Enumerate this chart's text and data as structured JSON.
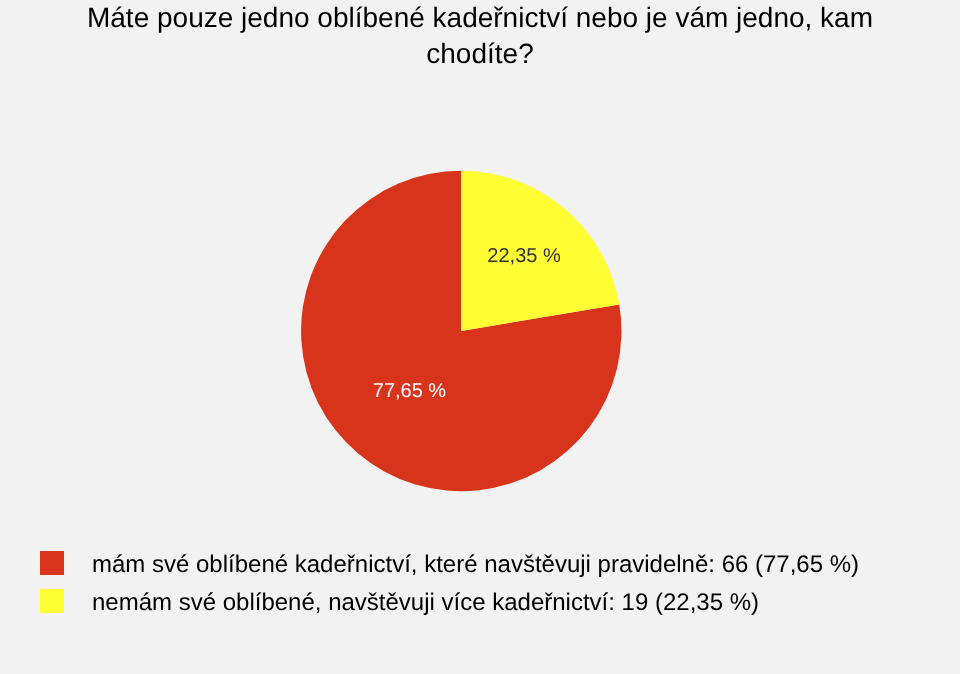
{
  "chart_data": {
    "type": "pie",
    "title": "Máte pouze jedno oblíbené kadeřnictví nebo je vám jedno, kam chodíte?",
    "categories": [
      "mám své oblíbené kadeřnictví, které navštěvuji pravidelně: 66 (77,65 %)",
      "nemám své oblíbené, navštěvuji více kadeřnictví: 19 (22,35 %)"
    ],
    "values": [
      77.65,
      22.35
    ],
    "colors": [
      "#d8341c",
      "#ffff33"
    ],
    "value_labels": [
      "77,65 %",
      "22,35 %"
    ],
    "legend": "bottom left"
  }
}
